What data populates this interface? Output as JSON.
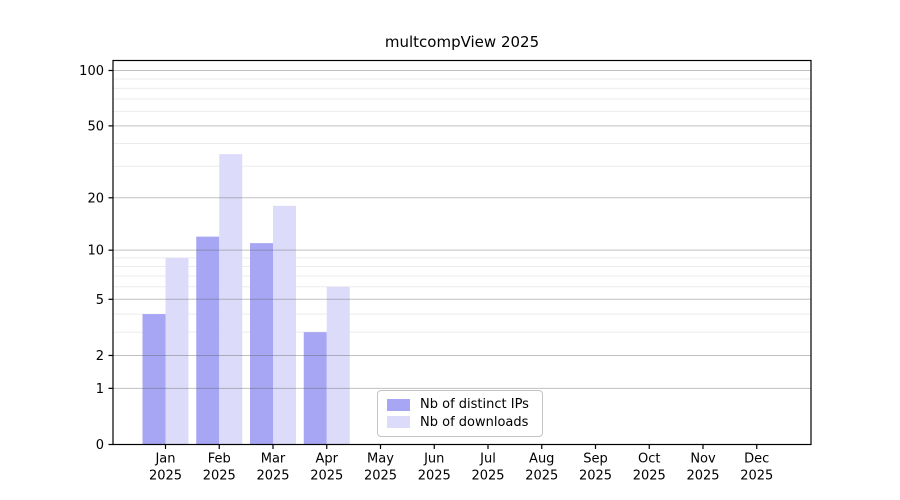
{
  "figure": {
    "title": "multcompView 2025",
    "background": "#ffffff"
  },
  "chart_data": {
    "type": "bar",
    "title": "multcompView 2025",
    "categories": [
      "Jan",
      "Feb",
      "Mar",
      "Apr",
      "May",
      "Jun",
      "Jul",
      "Aug",
      "Sep",
      "Oct",
      "Nov",
      "Dec"
    ],
    "x_tick_year": "2025",
    "series": [
      {
        "name": "Nb of distinct IPs",
        "color": "#a6a6f4",
        "values": [
          4,
          12,
          11,
          3,
          0,
          0,
          0,
          0,
          0,
          0,
          0,
          0
        ]
      },
      {
        "name": "Nb of downloads",
        "color": "#dcdcfa",
        "values": [
          9,
          35,
          18,
          6,
          0,
          0,
          0,
          0,
          0,
          0,
          0,
          0
        ]
      }
    ],
    "y_axis": {
      "scale": "log10(1+x)",
      "major_ticks": [
        0,
        1,
        2,
        5,
        10,
        20,
        50,
        100
      ],
      "minor_gridlines": [
        3,
        4,
        6,
        7,
        8,
        9,
        30,
        40,
        60,
        70,
        80,
        90
      ],
      "top_value": 100
    },
    "grid": true,
    "legend_position": "lower center",
    "colors": {
      "major_grid": "#bfbfbf",
      "minor_grid": "#ebebeb",
      "axis": "#000000",
      "text": "#000000"
    }
  }
}
